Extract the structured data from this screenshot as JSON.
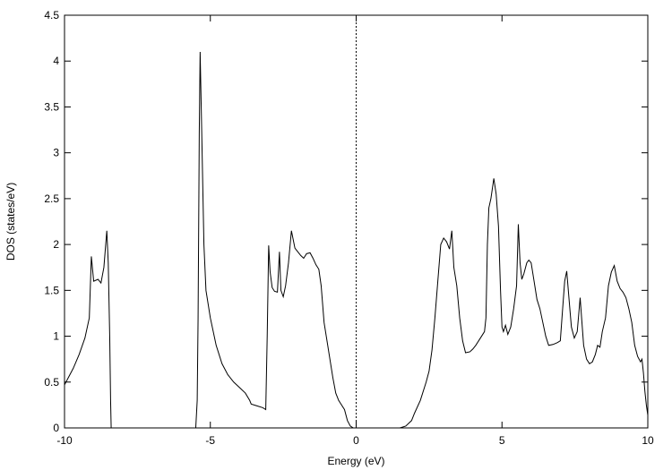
{
  "chart_data": {
    "type": "line",
    "title": "",
    "xlabel": "Energy (eV)",
    "ylabel": "DOS (states/eV)",
    "xlim": [
      -10,
      10
    ],
    "ylim": [
      0,
      4.5
    ],
    "xticks": [
      -10,
      -5,
      0,
      5,
      10
    ],
    "xtick_labels": [
      "-10",
      "-5",
      "0",
      "5",
      "10"
    ],
    "yticks": [
      0,
      0.5,
      1,
      1.5,
      2,
      2.5,
      3,
      3.5,
      4,
      4.5
    ],
    "ytick_labels": [
      "0",
      "0.5",
      "1",
      "1.5",
      "2",
      "2.5",
      "3",
      "3.5",
      "4",
      "4.5"
    ],
    "grid": false,
    "legend": "none",
    "fermi_level": 0,
    "series": [
      {
        "color": "#000000",
        "points": [
          [
            -10.0,
            0.47
          ],
          [
            -9.7,
            0.65
          ],
          [
            -9.5,
            0.8
          ],
          [
            -9.3,
            0.98
          ],
          [
            -9.15,
            1.2
          ],
          [
            -9.08,
            1.87
          ],
          [
            -9.0,
            1.6
          ],
          [
            -8.85,
            1.62
          ],
          [
            -8.75,
            1.58
          ],
          [
            -8.65,
            1.75
          ],
          [
            -8.55,
            2.15
          ],
          [
            -8.5,
            1.8
          ],
          [
            -8.45,
            1.0
          ],
          [
            -8.42,
            0.3
          ],
          [
            -8.4,
            0.0
          ],
          [
            -5.5,
            0.0
          ],
          [
            -5.45,
            0.3
          ],
          [
            -5.42,
            1.2
          ],
          [
            -5.38,
            3.2
          ],
          [
            -5.35,
            4.1
          ],
          [
            -5.3,
            3.3
          ],
          [
            -5.22,
            2.0
          ],
          [
            -5.15,
            1.5
          ],
          [
            -5.0,
            1.2
          ],
          [
            -4.8,
            0.9
          ],
          [
            -4.6,
            0.7
          ],
          [
            -4.4,
            0.58
          ],
          [
            -4.2,
            0.5
          ],
          [
            -4.0,
            0.44
          ],
          [
            -3.8,
            0.38
          ],
          [
            -3.65,
            0.3
          ],
          [
            -3.6,
            0.26
          ],
          [
            -3.4,
            0.24
          ],
          [
            -3.2,
            0.22
          ],
          [
            -3.1,
            0.2
          ],
          [
            -3.05,
            1.0
          ],
          [
            -3.0,
            1.99
          ],
          [
            -2.95,
            1.7
          ],
          [
            -2.88,
            1.53
          ],
          [
            -2.8,
            1.49
          ],
          [
            -2.7,
            1.48
          ],
          [
            -2.63,
            1.92
          ],
          [
            -2.58,
            1.5
          ],
          [
            -2.5,
            1.43
          ],
          [
            -2.42,
            1.55
          ],
          [
            -2.32,
            1.8
          ],
          [
            -2.22,
            2.15
          ],
          [
            -2.1,
            1.96
          ],
          [
            -2.0,
            1.92
          ],
          [
            -1.9,
            1.88
          ],
          [
            -1.8,
            1.85
          ],
          [
            -1.7,
            1.9
          ],
          [
            -1.58,
            1.91
          ],
          [
            -1.48,
            1.85
          ],
          [
            -1.38,
            1.78
          ],
          [
            -1.28,
            1.73
          ],
          [
            -1.2,
            1.55
          ],
          [
            -1.1,
            1.15
          ],
          [
            -1.0,
            0.95
          ],
          [
            -0.9,
            0.75
          ],
          [
            -0.8,
            0.55
          ],
          [
            -0.7,
            0.38
          ],
          [
            -0.6,
            0.3
          ],
          [
            -0.5,
            0.25
          ],
          [
            -0.4,
            0.2
          ],
          [
            -0.3,
            0.08
          ],
          [
            -0.2,
            0.02
          ],
          [
            -0.1,
            0.0
          ],
          [
            1.5,
            0.0
          ],
          [
            1.7,
            0.02
          ],
          [
            1.9,
            0.08
          ],
          [
            2.0,
            0.16
          ],
          [
            2.2,
            0.3
          ],
          [
            2.4,
            0.5
          ],
          [
            2.5,
            0.62
          ],
          [
            2.6,
            0.85
          ],
          [
            2.7,
            1.2
          ],
          [
            2.8,
            1.6
          ],
          [
            2.9,
            2.0
          ],
          [
            3.0,
            2.07
          ],
          [
            3.1,
            2.03
          ],
          [
            3.2,
            1.95
          ],
          [
            3.28,
            2.15
          ],
          [
            3.35,
            1.75
          ],
          [
            3.45,
            1.55
          ],
          [
            3.55,
            1.2
          ],
          [
            3.65,
            0.95
          ],
          [
            3.75,
            0.82
          ],
          [
            3.9,
            0.83
          ],
          [
            4.0,
            0.86
          ],
          [
            4.1,
            0.9
          ],
          [
            4.2,
            0.95
          ],
          [
            4.3,
            1.0
          ],
          [
            4.4,
            1.05
          ],
          [
            4.45,
            1.2
          ],
          [
            4.5,
            2.0
          ],
          [
            4.55,
            2.4
          ],
          [
            4.62,
            2.5
          ],
          [
            4.72,
            2.72
          ],
          [
            4.8,
            2.55
          ],
          [
            4.88,
            2.2
          ],
          [
            4.95,
            1.5
          ],
          [
            5.0,
            1.1
          ],
          [
            5.05,
            1.05
          ],
          [
            5.12,
            1.12
          ],
          [
            5.2,
            1.02
          ],
          [
            5.3,
            1.1
          ],
          [
            5.4,
            1.3
          ],
          [
            5.5,
            1.55
          ],
          [
            5.56,
            2.22
          ],
          [
            5.62,
            1.8
          ],
          [
            5.68,
            1.62
          ],
          [
            5.75,
            1.68
          ],
          [
            5.85,
            1.8
          ],
          [
            5.92,
            1.83
          ],
          [
            6.0,
            1.8
          ],
          [
            6.1,
            1.6
          ],
          [
            6.2,
            1.4
          ],
          [
            6.3,
            1.3
          ],
          [
            6.4,
            1.15
          ],
          [
            6.5,
            1.0
          ],
          [
            6.6,
            0.9
          ],
          [
            6.75,
            0.91
          ],
          [
            6.9,
            0.93
          ],
          [
            7.0,
            0.95
          ],
          [
            7.08,
            1.3
          ],
          [
            7.15,
            1.6
          ],
          [
            7.22,
            1.71
          ],
          [
            7.3,
            1.4
          ],
          [
            7.38,
            1.1
          ],
          [
            7.48,
            0.98
          ],
          [
            7.58,
            1.05
          ],
          [
            7.68,
            1.42
          ],
          [
            7.73,
            1.2
          ],
          [
            7.8,
            0.9
          ],
          [
            7.9,
            0.75
          ],
          [
            8.0,
            0.7
          ],
          [
            8.1,
            0.72
          ],
          [
            8.2,
            0.8
          ],
          [
            8.28,
            0.9
          ],
          [
            8.36,
            0.88
          ],
          [
            8.44,
            1.05
          ],
          [
            8.55,
            1.2
          ],
          [
            8.65,
            1.55
          ],
          [
            8.75,
            1.7
          ],
          [
            8.85,
            1.77
          ],
          [
            8.95,
            1.6
          ],
          [
            9.05,
            1.52
          ],
          [
            9.15,
            1.48
          ],
          [
            9.25,
            1.42
          ],
          [
            9.35,
            1.3
          ],
          [
            9.45,
            1.15
          ],
          [
            9.55,
            0.9
          ],
          [
            9.65,
            0.78
          ],
          [
            9.75,
            0.72
          ],
          [
            9.8,
            0.75
          ],
          [
            9.85,
            0.6
          ],
          [
            9.9,
            0.4
          ],
          [
            9.95,
            0.25
          ],
          [
            10.0,
            0.14
          ]
        ]
      }
    ]
  }
}
